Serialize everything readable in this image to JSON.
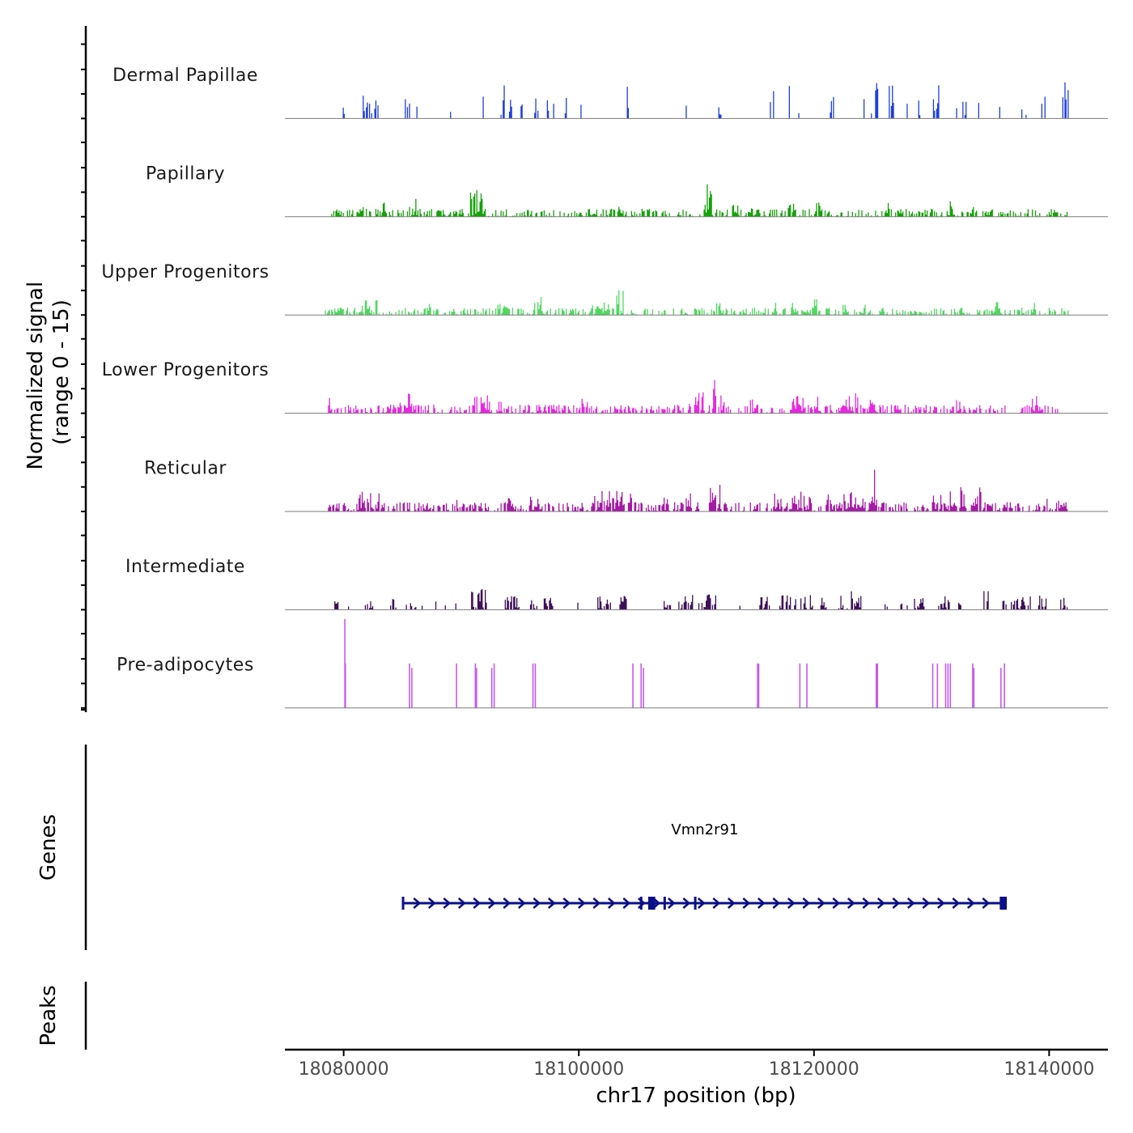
{
  "chart_data": {
    "type": "area",
    "title": "",
    "ylabel_line1": "Normalized signal",
    "ylabel_line2": "(range 0 - 15)",
    "genes_label": "Genes",
    "peaks_label": "Peaks",
    "xlabel": "chr17 position (bp)",
    "xlim": [
      18075000,
      18145000
    ],
    "xticks": [
      18080000,
      18100000,
      18120000,
      18140000
    ],
    "xtick_labels": [
      "18080000",
      "18100000",
      "18120000",
      "18140000"
    ],
    "ylim": [
      0,
      15
    ],
    "series": [
      {
        "name": "Dermal Papillae",
        "color": "#1f3fdb",
        "seed": 11,
        "style": "sparse",
        "start": 18079800,
        "end": 18141700,
        "clusters": [
          [
            18079900,
            18080100,
            0.6
          ],
          [
            18081400,
            18082700,
            0.45
          ],
          [
            18082800,
            18083100,
            0.55
          ],
          [
            18085000,
            18085800,
            0.9
          ],
          [
            18086000,
            18086200,
            0.35
          ],
          [
            18088800,
            18089100,
            0.3
          ],
          [
            18091600,
            18091900,
            0.4
          ],
          [
            18093300,
            18093700,
            0.45
          ],
          [
            18094000,
            18094500,
            0.55
          ],
          [
            18095000,
            18095200,
            0.3
          ],
          [
            18096200,
            18096500,
            0.4
          ],
          [
            18097200,
            18097900,
            0.3
          ],
          [
            18098800,
            18099100,
            0.3
          ],
          [
            18099900,
            18100300,
            0.3
          ],
          [
            18104000,
            18104700,
            0.7
          ],
          [
            18108500,
            18108600,
            0.35
          ],
          [
            18109000,
            18109200,
            0.2
          ],
          [
            18111700,
            18112100,
            0.35
          ],
          [
            18116200,
            18116600,
            0.4
          ],
          [
            18117800,
            18118000,
            0.5
          ],
          [
            18118600,
            18118800,
            0.35
          ],
          [
            18121200,
            18121700,
            0.5
          ],
          [
            18122400,
            18122500,
            0.3
          ],
          [
            18124200,
            18125600,
            0.6
          ],
          [
            18126300,
            18126800,
            0.45
          ],
          [
            18127800,
            18128100,
            0.3
          ],
          [
            18128800,
            18129200,
            0.3
          ],
          [
            18130100,
            18130800,
            0.75
          ],
          [
            18132000,
            18132300,
            0.45
          ],
          [
            18132500,
            18133000,
            0.35
          ],
          [
            18133500,
            18134200,
            0.3
          ],
          [
            18135700,
            18135900,
            0.3
          ],
          [
            18137600,
            18138100,
            0.6
          ],
          [
            18138900,
            18139700,
            0.75
          ],
          [
            18140900,
            18141600,
            0.5
          ]
        ]
      },
      {
        "name": "Papillary",
        "color": "#16a10a",
        "seed": 23,
        "style": "dense",
        "start": 18078900,
        "end": 18141700,
        "base": 0.12,
        "clusters": [
          [
            18081200,
            18081700,
            0.2
          ],
          [
            18083200,
            18083500,
            0.22
          ],
          [
            18085500,
            18086300,
            0.28
          ],
          [
            18090500,
            18091800,
            0.45
          ],
          [
            18103000,
            18103600,
            0.18
          ],
          [
            18110500,
            18111500,
            0.55
          ],
          [
            18113000,
            18113600,
            0.2
          ],
          [
            18114300,
            18115200,
            0.2
          ],
          [
            18117600,
            18118300,
            0.22
          ],
          [
            18120000,
            18120600,
            0.2
          ],
          [
            18126000,
            18126600,
            0.2
          ],
          [
            18131500,
            18131900,
            0.25
          ],
          [
            18133000,
            18133600,
            0.18
          ]
        ]
      },
      {
        "name": "Upper Progenitors",
        "color": "#4fd860",
        "seed": 37,
        "style": "dense",
        "start": 18078400,
        "end": 18141700,
        "base": 0.11,
        "clusters": [
          [
            18081500,
            18082800,
            0.22
          ],
          [
            18087000,
            18087500,
            0.16
          ],
          [
            18092800,
            18094000,
            0.16
          ],
          [
            18096000,
            18096800,
            0.26
          ],
          [
            18098600,
            18099200,
            0.16
          ],
          [
            18101000,
            18102500,
            0.2
          ],
          [
            18103000,
            18103800,
            0.45
          ],
          [
            18104400,
            18104700,
            0.2
          ],
          [
            18111500,
            18112300,
            0.18
          ],
          [
            18116500,
            18116800,
            0.2
          ],
          [
            18118000,
            18118800,
            0.22
          ],
          [
            18119600,
            18120400,
            0.28
          ],
          [
            18122200,
            18122900,
            0.2
          ],
          [
            18124000,
            18124400,
            0.18
          ],
          [
            18135300,
            18135800,
            0.3
          ],
          [
            18138300,
            18138800,
            0.2
          ]
        ]
      },
      {
        "name": "Lower Progenitors",
        "color": "#e629e0",
        "seed": 51,
        "style": "dense",
        "start": 18078600,
        "end": 18140800,
        "base": 0.13,
        "clusters": [
          [
            18078600,
            18078800,
            0.3
          ],
          [
            18082200,
            18082500,
            0.25
          ],
          [
            18084600,
            18085900,
            0.3
          ],
          [
            18091000,
            18092500,
            0.28
          ],
          [
            18093000,
            18093500,
            0.2
          ],
          [
            18096200,
            18096800,
            0.22
          ],
          [
            18098000,
            18098300,
            0.2
          ],
          [
            18100200,
            18100700,
            0.22
          ],
          [
            18109300,
            18110600,
            0.3
          ],
          [
            18111200,
            18111600,
            0.55
          ],
          [
            18112000,
            18112500,
            0.25
          ],
          [
            18114500,
            18114900,
            0.25
          ],
          [
            18118000,
            18120500,
            0.25
          ],
          [
            18122200,
            18123700,
            0.3
          ],
          [
            18124600,
            18125300,
            0.22
          ],
          [
            18132000,
            18132700,
            0.2
          ],
          [
            18138500,
            18139500,
            0.25
          ]
        ]
      },
      {
        "name": "Reticular",
        "color": "#a51aa5",
        "seed": 67,
        "style": "dense",
        "start": 18078600,
        "end": 18141700,
        "base": 0.14,
        "clusters": [
          [
            18078600,
            18078900,
            0.45
          ],
          [
            18081200,
            18083300,
            0.28
          ],
          [
            18089500,
            18089900,
            0.22
          ],
          [
            18092000,
            18092300,
            0.22
          ],
          [
            18093800,
            18094200,
            0.2
          ],
          [
            18095800,
            18096800,
            0.22
          ],
          [
            18101000,
            18103700,
            0.3
          ],
          [
            18104000,
            18104500,
            0.3
          ],
          [
            18107000,
            18107500,
            0.2
          ],
          [
            18108700,
            18109500,
            0.35
          ],
          [
            18111000,
            18112000,
            0.45
          ],
          [
            18116500,
            18117200,
            0.25
          ],
          [
            18118000,
            18119900,
            0.3
          ],
          [
            18121000,
            18124400,
            0.28
          ],
          [
            18124600,
            18125300,
            0.65
          ],
          [
            18130000,
            18132000,
            0.3
          ],
          [
            18132300,
            18132800,
            0.55
          ],
          [
            18133600,
            18134200,
            0.45
          ],
          [
            18139700,
            18140000,
            0.45
          ],
          [
            18140700,
            18141500,
            0.2
          ]
        ]
      },
      {
        "name": "Intermediate",
        "color": "#3d1157",
        "seed": 79,
        "style": "patchy",
        "start": 18079200,
        "end": 18141700,
        "base": 0.14,
        "clusters": [
          [
            18079200,
            18079500,
            0.12
          ],
          [
            18081700,
            18082500,
            0.18
          ],
          [
            18083900,
            18084400,
            0.18
          ],
          [
            18085600,
            18086100,
            0.12
          ],
          [
            18090800,
            18092100,
            0.45
          ],
          [
            18093700,
            18094900,
            0.2
          ],
          [
            18095800,
            18096500,
            0.2
          ],
          [
            18097000,
            18097800,
            0.16
          ],
          [
            18101500,
            18102800,
            0.18
          ],
          [
            18103400,
            18104000,
            0.2
          ],
          [
            18107200,
            18107800,
            0.14
          ],
          [
            18108300,
            18109800,
            0.22
          ],
          [
            18110300,
            18111600,
            0.24
          ],
          [
            18113600,
            18113900,
            0.14
          ],
          [
            18115200,
            18116200,
            0.24
          ],
          [
            18117000,
            18120000,
            0.2
          ],
          [
            18120500,
            18121000,
            0.2
          ],
          [
            18122000,
            18122800,
            0.22
          ],
          [
            18123000,
            18124000,
            0.26
          ],
          [
            18126000,
            18126300,
            0.12
          ],
          [
            18127200,
            18127500,
            0.12
          ],
          [
            18128500,
            18129400,
            0.16
          ],
          [
            18130500,
            18131500,
            0.2
          ],
          [
            18132200,
            18132700,
            0.2
          ],
          [
            18134400,
            18134800,
            0.28
          ],
          [
            18136000,
            18136300,
            0.16
          ],
          [
            18136700,
            18138400,
            0.18
          ],
          [
            18139000,
            18139700,
            0.2
          ],
          [
            18140900,
            18141500,
            0.3
          ]
        ]
      },
      {
        "name": "Pre-adipocytes",
        "color": "#c25bf0",
        "seed": 83,
        "style": "spikes",
        "start": 18080000,
        "end": 18140000,
        "spikes": [
          [
            18080100,
            1.0
          ],
          [
            18080150,
            0.5
          ],
          [
            18085600,
            0.5
          ],
          [
            18085800,
            0.45
          ],
          [
            18089600,
            0.5
          ],
          [
            18091200,
            0.5
          ],
          [
            18091300,
            0.45
          ],
          [
            18092600,
            0.45
          ],
          [
            18092800,
            0.5
          ],
          [
            18096100,
            0.5
          ],
          [
            18096300,
            0.5
          ],
          [
            18104600,
            0.5
          ],
          [
            18105300,
            0.5
          ],
          [
            18105500,
            0.45
          ],
          [
            18115200,
            0.5
          ],
          [
            18115300,
            0.5
          ],
          [
            18118800,
            0.5
          ],
          [
            18119400,
            0.5
          ],
          [
            18125300,
            0.5
          ],
          [
            18125400,
            0.5
          ],
          [
            18130100,
            0.5
          ],
          [
            18130500,
            0.5
          ],
          [
            18131200,
            0.5
          ],
          [
            18131400,
            0.5
          ],
          [
            18131600,
            0.5
          ],
          [
            18133500,
            0.5
          ],
          [
            18133600,
            0.45
          ],
          [
            18135900,
            0.45
          ],
          [
            18136200,
            0.5
          ]
        ]
      }
    ],
    "gene": {
      "name": "Vmn2r91",
      "color": "#0b0f88",
      "start": 18085000,
      "end": 18136300,
      "exons": [
        [
          18084950,
          18085100
        ],
        [
          18105200,
          18105300
        ],
        [
          18105900,
          18106500
        ],
        [
          18107200,
          18107300
        ],
        [
          18109800,
          18109900
        ],
        [
          18135800,
          18136400
        ]
      ]
    },
    "peaks": []
  }
}
